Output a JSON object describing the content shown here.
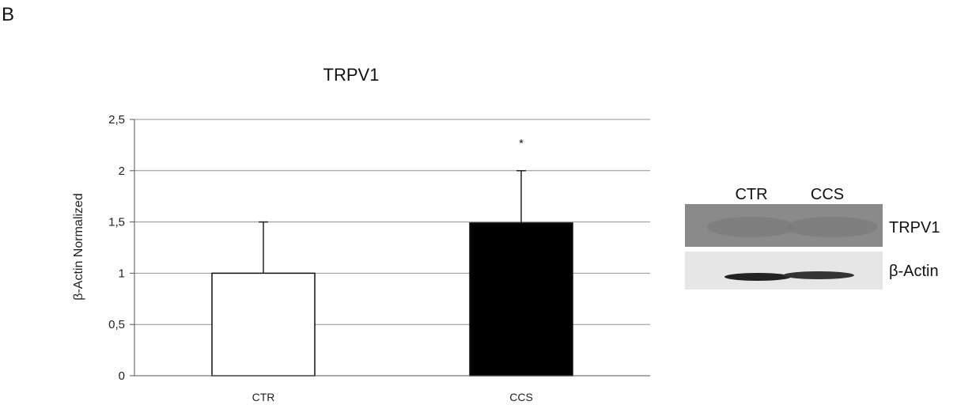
{
  "panel_label": "B",
  "chart_data": {
    "type": "bar",
    "title": "TRPV1",
    "xlabel": "",
    "ylabel": "β-Actin Normalized",
    "ylim": [
      0,
      2.5
    ],
    "ytick_values": [
      0,
      0.5,
      1,
      1.5,
      2,
      2.5
    ],
    "ytick_labels": [
      "0",
      "0,5",
      "1",
      "1,5",
      "2",
      "2,5"
    ],
    "grid": true,
    "categories": [
      "CTR",
      "CCS"
    ],
    "values": [
      1.0,
      1.49
    ],
    "errors": [
      0.5,
      0.51
    ],
    "bar_fills": [
      "#ffffff",
      "#000000"
    ],
    "significance": [
      "",
      "*"
    ]
  },
  "blot": {
    "lanes": [
      "CTR",
      "CCS"
    ],
    "bands": [
      "TRPV1",
      "β-Actin"
    ]
  }
}
